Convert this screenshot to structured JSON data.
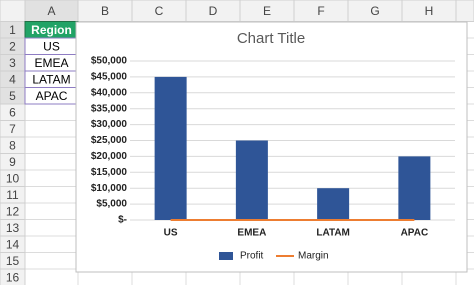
{
  "spreadsheet": {
    "columns": [
      "A",
      "B",
      "C",
      "D",
      "E",
      "F",
      "G",
      "H"
    ],
    "row_numbers": [
      1,
      2,
      3,
      4,
      5,
      6,
      7,
      8,
      9,
      10,
      11,
      12,
      13,
      14,
      15,
      16
    ],
    "cells": [
      "Region",
      "US",
      "EMEA",
      "LATAM",
      "APAC"
    ]
  },
  "chart_data": {
    "type": "bar",
    "title": "Chart Title",
    "categories": [
      "US",
      "EMEA",
      "LATAM",
      "APAC"
    ],
    "series": [
      {
        "name": "Profit",
        "color": "#2f5597",
        "values": [
          45000,
          25000,
          10000,
          20000
        ]
      },
      {
        "name": "Margin",
        "type": "line",
        "color": "#ed7d31",
        "values": [
          0,
          0,
          0,
          0
        ]
      }
    ],
    "ylim": [
      0,
      50000
    ],
    "yticks": [
      {
        "value": 0,
        "label": "$-"
      },
      {
        "value": 5000,
        "label": "$5,000"
      },
      {
        "value": 10000,
        "label": "$10,000"
      },
      {
        "value": 15000,
        "label": "$15,000"
      },
      {
        "value": 20000,
        "label": "$20,000"
      },
      {
        "value": 25000,
        "label": "$25,000"
      },
      {
        "value": 30000,
        "label": "$30,000"
      },
      {
        "value": 35000,
        "label": "$35,000"
      },
      {
        "value": 40000,
        "label": "$40,000"
      },
      {
        "value": 45000,
        "label": "$45,000"
      },
      {
        "value": 50000,
        "label": "$50,000"
      }
    ],
    "grid": true,
    "legend": "bottom"
  }
}
